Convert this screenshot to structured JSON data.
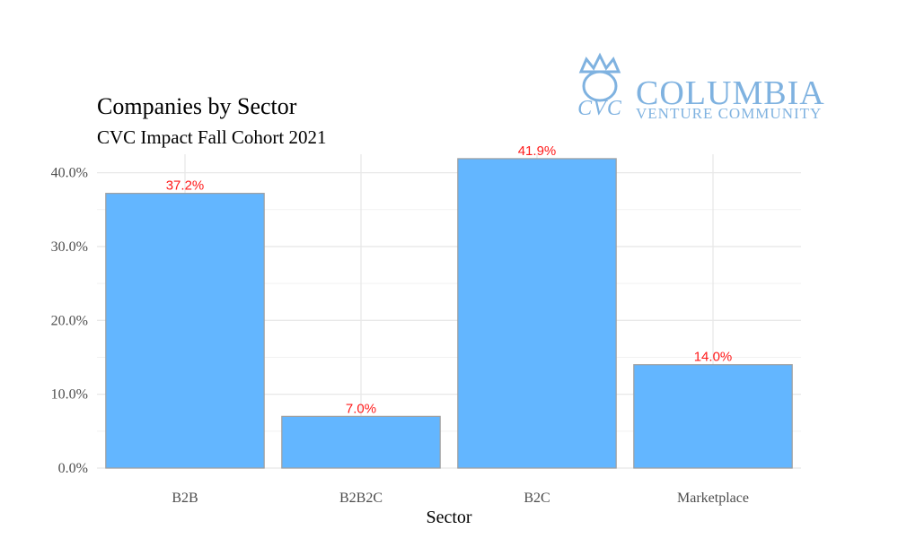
{
  "logo": {
    "name": "COLUMBIA",
    "tagline": "VENTURE COMMUNITY",
    "mark": "CVC",
    "color": "#7fb2e0"
  },
  "chart_data": {
    "type": "bar",
    "title": "Companies by Sector",
    "subtitle": "CVC Impact Fall Cohort 2021",
    "xlabel": "Sector",
    "ylabel": "",
    "categories": [
      "B2B",
      "B2B2C",
      "B2C",
      "Marketplace"
    ],
    "values": [
      37.2,
      7.0,
      41.9,
      14.0
    ],
    "data_labels": [
      "37.2%",
      "7.0%",
      "41.9%",
      "14.0%"
    ],
    "ylim": [
      0,
      42.5
    ],
    "yticks": [
      0,
      10,
      20,
      30,
      40
    ],
    "ytick_labels": [
      "0.0%",
      "10.0%",
      "20.0%",
      "30.0%",
      "40.0%"
    ],
    "grid": true,
    "bar_color": "#63b6ff",
    "bar_border_color": "#9e9e9e",
    "label_color": "#ff1a1a"
  }
}
